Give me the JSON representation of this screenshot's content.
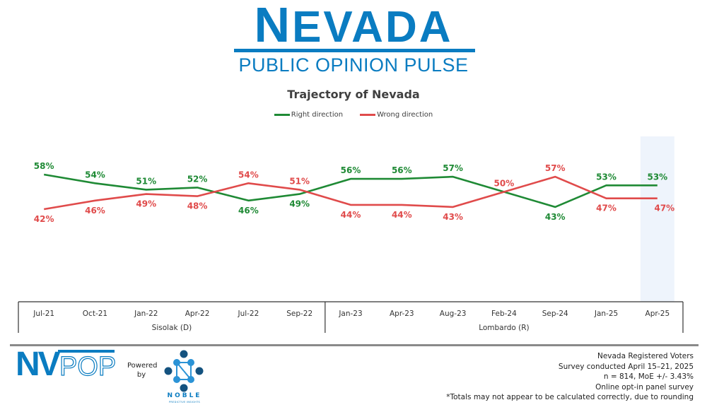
{
  "header": {
    "brand_title_first": "N",
    "brand_title_rest": "EVADA",
    "brand_subtitle": "PUBLIC OPINION PULSE"
  },
  "colors": {
    "brand_blue": "#0a7cc1",
    "right_direction": "#1f8a35",
    "wrong_direction": "#e04b4b",
    "highlight_band": "#eef4fc"
  },
  "chart_data": {
    "type": "line",
    "title": "Trajectory of Nevada",
    "xlabel": "",
    "ylabel": "",
    "ylim": [
      0,
      100
    ],
    "grid": false,
    "legend_position": "top-center",
    "categories": [
      "Jul-21",
      "Oct-21",
      "Jan-22",
      "Apr-22",
      "Jul-22",
      "Sep-22",
      "Jan-23",
      "Apr-23",
      "Aug-23",
      "Feb-24",
      "Sep-24",
      "Jan-25",
      "Apr-25"
    ],
    "series": [
      {
        "name": "Right direction",
        "values": [
          58,
          54,
          51,
          52,
          46,
          49,
          56,
          56,
          57,
          50,
          43,
          53,
          53
        ]
      },
      {
        "name": "Wrong direction",
        "values": [
          42,
          46,
          49,
          48,
          54,
          51,
          44,
          44,
          43,
          50,
          57,
          47,
          47
        ]
      }
    ],
    "data_labels": {
      "Right direction": [
        "58%",
        "54%",
        "51%",
        "52%",
        "46%",
        "49%",
        "56%",
        "56%",
        "57%",
        "",
        "43%",
        "53%",
        "53%"
      ],
      "Wrong direction": [
        "42%",
        "46%",
        "49%",
        "48%",
        "54%",
        "51%",
        "44%",
        "44%",
        "43%",
        "50%",
        "57%",
        "47%",
        "47%"
      ]
    },
    "groups": [
      {
        "label": "Sisolak (D)",
        "from": "Jul-21",
        "to": "Sep-22"
      },
      {
        "label": "Lombardo (R)",
        "from": "Jan-23",
        "to": "Apr-25"
      }
    ],
    "highlighted_category": "Apr-25"
  },
  "footer": {
    "logo_left_bold": "NV",
    "logo_left_outline": "POP",
    "powered_by": "Powered by",
    "partner_name": "NOBLE",
    "partner_tagline": "PREDICTIVE INSIGHTS",
    "notes": [
      "Nevada Registered Voters",
      "Survey conducted April 15–21, 2025",
      "n = 814, MoE +/- 3.43%",
      "Online opt-in panel survey",
      "*Totals may not appear to be calculated correctly, due to rounding"
    ]
  }
}
